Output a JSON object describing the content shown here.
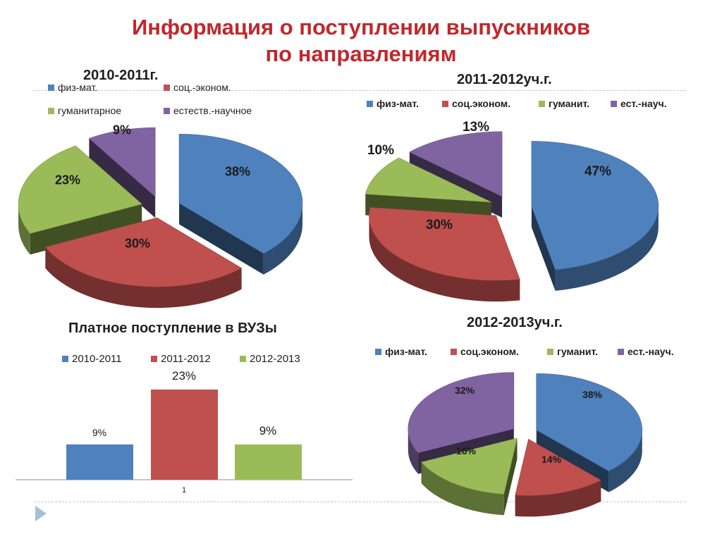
{
  "slide": {
    "title_line1": "Информация о поступлении выпускников",
    "title_line2": "по направлениям"
  },
  "colors": {
    "blue": "#4f81bd",
    "red": "#c0504d",
    "green": "#9bbb59",
    "purple": "#8064a2",
    "title_red": "#c0282c",
    "rule": "#b8c6d6"
  },
  "chart_data": [
    {
      "type": "pie",
      "title": "2010-2011г.",
      "legend": [
        "физ-мат.",
        "соц.-эконом.",
        "гуманитарное",
        "естеств.-научное"
      ],
      "values": [
        38,
        30,
        23,
        9
      ],
      "labels": [
        "38%",
        "30%",
        "23%",
        "9%"
      ]
    },
    {
      "type": "pie",
      "title": "2011-2012уч.г.",
      "legend": [
        "физ-мат.",
        "соц.эконом.",
        "гуманит.",
        "ест.-науч."
      ],
      "values": [
        47,
        30,
        10,
        13
      ],
      "labels": [
        "47%",
        "30%",
        "10%",
        "13%"
      ]
    },
    {
      "type": "bar",
      "title": "Платное поступление в ВУЗы",
      "categories": [
        "1"
      ],
      "series": [
        {
          "name": "2010-2011",
          "values": [
            9
          ]
        },
        {
          "name": "2011-2012",
          "values": [
            23
          ]
        },
        {
          "name": "2012-2013",
          "values": [
            9
          ]
        }
      ],
      "labels": [
        "9%",
        "23%",
        "9%"
      ],
      "ylim": [
        0,
        23
      ]
    },
    {
      "type": "pie",
      "title": "2012-2013уч.г.",
      "legend": [
        "физ-мат.",
        "соц.эконом.",
        "гуманит.",
        "ест.-науч."
      ],
      "values": [
        38,
        14,
        16,
        32
      ],
      "labels": [
        "38%",
        "14%",
        "16%",
        "32%"
      ]
    }
  ]
}
